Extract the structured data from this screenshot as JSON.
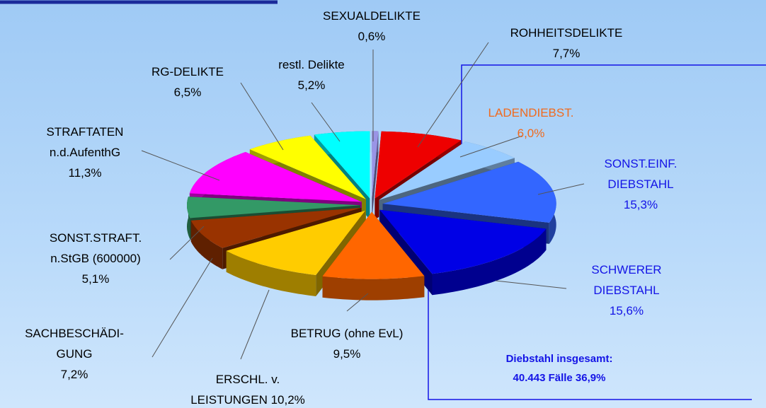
{
  "chart_data": {
    "type": "pie3d",
    "categories": [
      "SEXUALDELIKTE",
      "ROHHEITSDELIKTE",
      "LADENDIEBST.",
      "SONST.EINF.\nDIEBSTAHL",
      "SCHWERER\nDIEBSTAHL",
      "BETRUG (ohne EvL)",
      "ERSCHL. v.\nLEISTUNGEN",
      "SACHBESCHÄDI-\nGUNG",
      "SONST.STRAFT.\nn.StGB (600000)",
      "STRAFTATEN\nn.d.AufenthG",
      "RG-DELIKTE",
      "restl. Delikte"
    ],
    "values": [
      0.6,
      7.7,
      6.0,
      15.3,
      15.6,
      9.5,
      10.2,
      7.2,
      5.1,
      11.3,
      6.5,
      5.2
    ],
    "value_labels": [
      "0,6%",
      "7,7%",
      "6,0%",
      "15,3%",
      "15,6%",
      "9,5%",
      "10,2%",
      "7,2%",
      "5,1%",
      "11,3%",
      "6,5%",
      "5,2%"
    ],
    "colors": [
      "#9a94e6",
      "#ee0000",
      "#99ccff",
      "#3366ff",
      "#0000e6",
      "#ff6600",
      "#ffcc00",
      "#993300",
      "#339966",
      "#ff00ff",
      "#ffff00",
      "#00ffff"
    ],
    "annotation": "Diebstahl insgesamt:\n40.443 Fälle 36,9%"
  }
}
